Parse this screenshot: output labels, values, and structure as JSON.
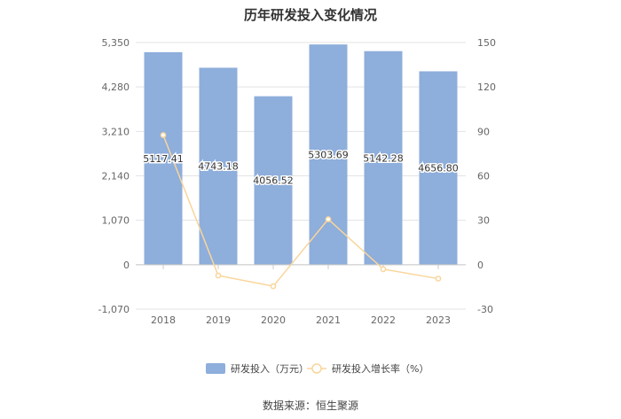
{
  "chart_data": {
    "type": "bar+line",
    "title": "历年研发投入变化情况",
    "categories": [
      "2018",
      "2019",
      "2020",
      "2021",
      "2022",
      "2023"
    ],
    "series": [
      {
        "name": "研发投入（万元）",
        "type": "bar",
        "axis": "left",
        "color": "#8eaedb",
        "values": [
          5117.41,
          4743.18,
          4056.52,
          5303.69,
          5142.28,
          4656.8
        ],
        "labels": [
          "5117.41",
          "4743.18",
          "4056.52",
          "5303.69",
          "5142.28",
          "4656.80"
        ]
      },
      {
        "name": "研发投入增长率（%）",
        "type": "line",
        "axis": "right",
        "color": "#f9d59b",
        "values": [
          87.5,
          -7.3,
          -14.5,
          30.7,
          -3.0,
          -9.4
        ]
      }
    ],
    "y_left": {
      "ticks": [
        -1070,
        0,
        1070,
        2140,
        3210,
        4280,
        5350
      ],
      "tick_labels": [
        "-1,070",
        "0",
        "1,070",
        "2,140",
        "3,210",
        "4,280",
        "5,350"
      ],
      "range": [
        -1070,
        5350
      ]
    },
    "y_right": {
      "ticks": [
        -30,
        0,
        30,
        60,
        90,
        120,
        150
      ],
      "tick_labels": [
        "-30",
        "0",
        "30",
        "60",
        "90",
        "120",
        "150"
      ],
      "range": [
        -30,
        150
      ]
    },
    "grid": true,
    "legend_position": "bottom"
  },
  "source_label": "数据来源：恒生聚源"
}
